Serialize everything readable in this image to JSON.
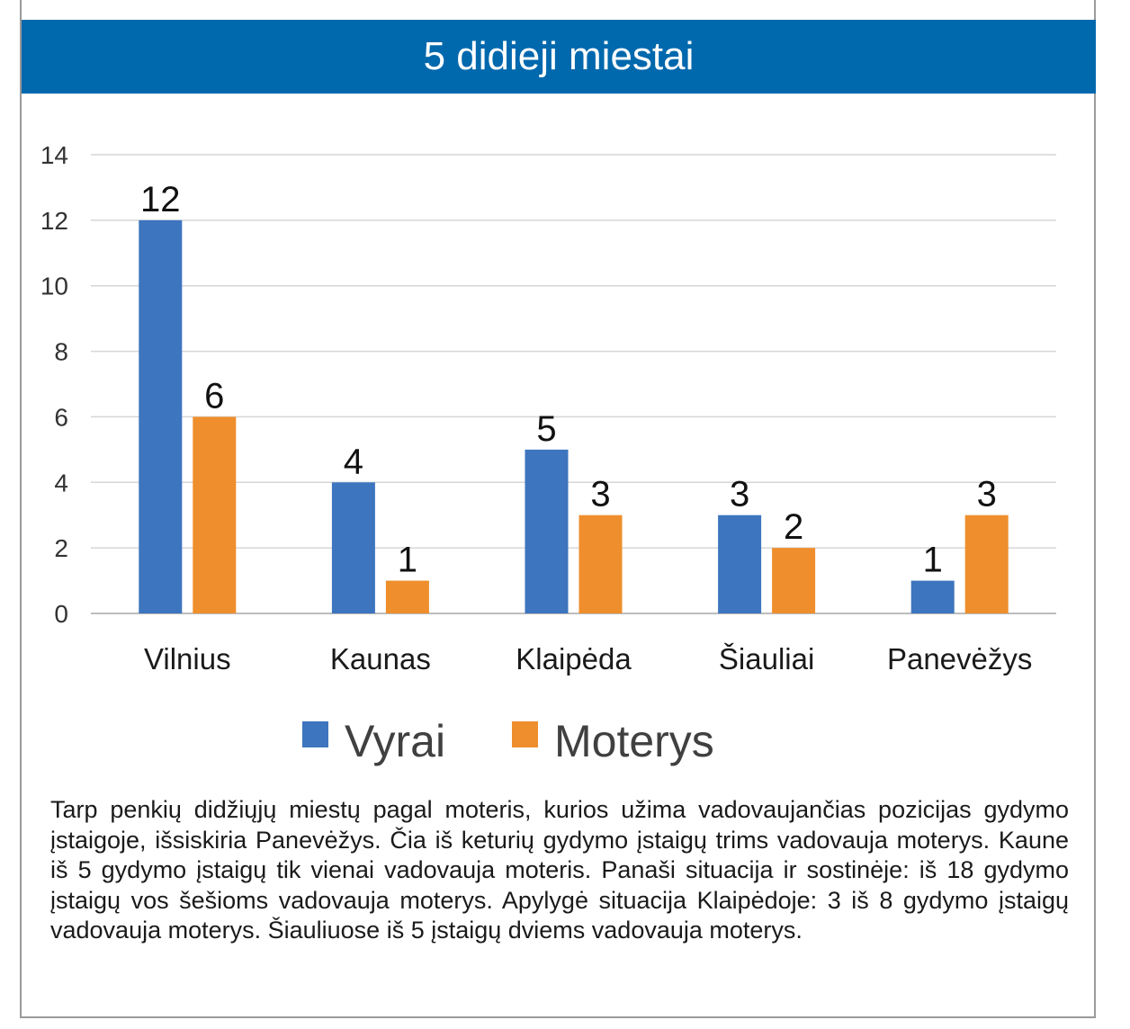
{
  "title": "5 didieji miestai",
  "chart_data": {
    "type": "bar",
    "categories": [
      "Vilnius",
      "Kaunas",
      "Klaipėda",
      "Šiauliai",
      "Panevėžys"
    ],
    "series": [
      {
        "name": "Vyrai",
        "values": [
          12,
          4,
          5,
          3,
          1
        ],
        "color": "#3d75be"
      },
      {
        "name": "Moterys",
        "values": [
          6,
          1,
          3,
          2,
          3
        ],
        "color": "#ee8e2c"
      }
    ],
    "ylim": [
      0,
      14
    ],
    "yticks": [
      0,
      2,
      4,
      6,
      8,
      10,
      12,
      14
    ],
    "grid": true,
    "legend": "bottom-center",
    "data_labels": true
  },
  "caption": "Tarp penkių didžiųjų miestų pagal moteris, kurios užima vadovaujančias pozicijas gydymo įstaigoje, išsiskiria Panevėžys. Čia iš keturių gydymo įstaigų trims vadovauja moterys. Kaune iš 5 gydymo įstaigų tik vienai vadovauja moteris. Panaši situacija ir sostinėje: iš 18 gydymo įstaigų vos šešioms vadovauja moterys. Apylygė situacija Klaipėdoje: 3 iš 8 gydymo įstaigų vadovauja moterys. Šiauliuose iš 5 įstaigų dviems vadovauja moterys."
}
